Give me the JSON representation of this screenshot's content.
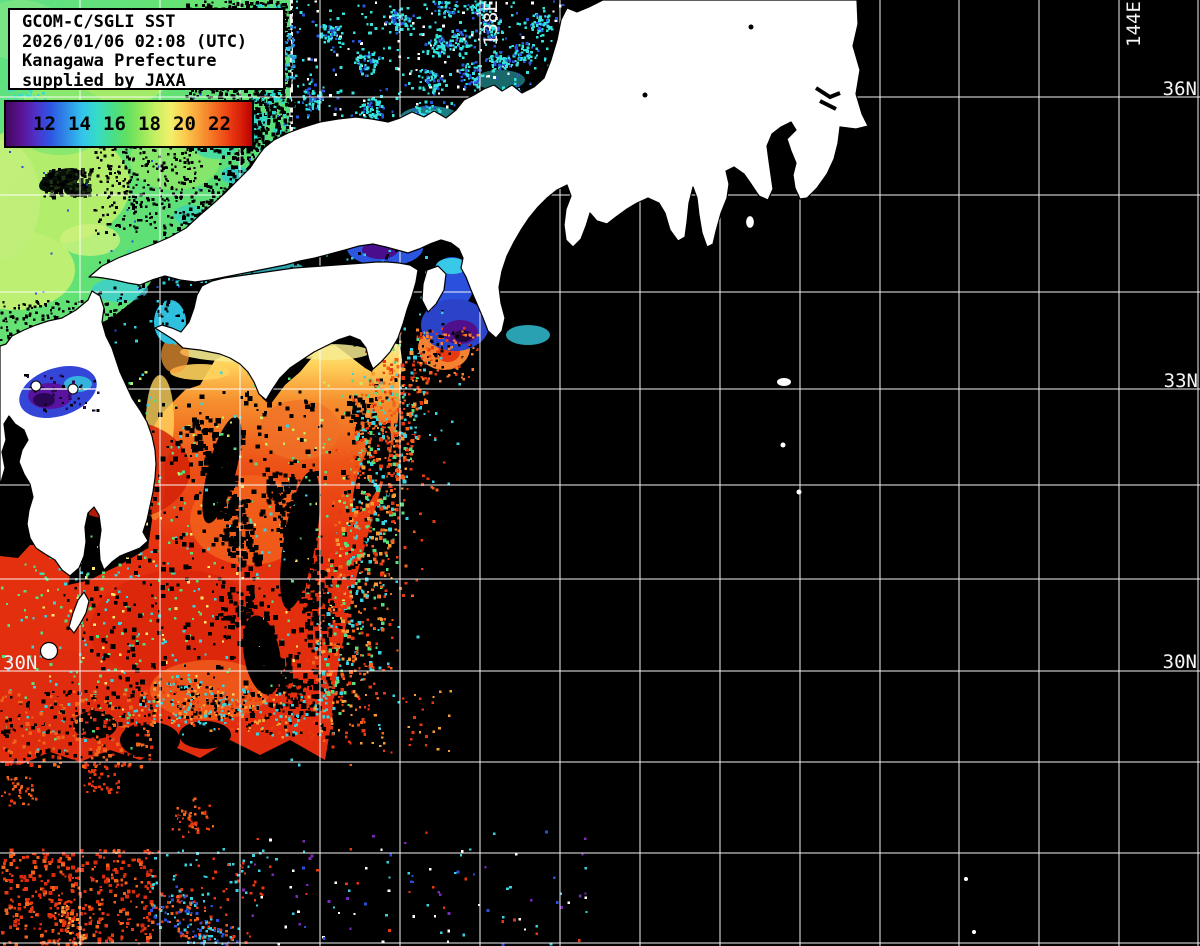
{
  "header": {
    "product": "GCOM-C/SGLI SST",
    "datetime": "2026/01/06 02:08 (UTC)",
    "region": "Kanagawa Prefecture",
    "credit": "supplied by JAXA"
  },
  "colorbar": {
    "ticks": [
      "12",
      "14",
      "16",
      "18",
      "20",
      "22"
    ],
    "gradient": [
      "#41085e",
      "#5030c8",
      "#2e55e4",
      "#33c4ec",
      "#36dcc8",
      "#5fe060",
      "#c8ef62",
      "#f2f06a",
      "#fcc94e",
      "#f89c36",
      "#ea3c12",
      "#b80000"
    ]
  },
  "grid_labels": {
    "lat_right": [
      "36N",
      "33N",
      "30N"
    ],
    "lat_left": [
      "30N"
    ],
    "lon_top": [
      "138E",
      "144E"
    ]
  },
  "map_colors": {
    "land": "#ffffff",
    "coastline": "#000000",
    "no_data": "#000000",
    "grid": "#ffffff",
    "warm_water": "#e8380f",
    "cool_water": "#5fe060",
    "cold_water": "#2e55e4"
  }
}
